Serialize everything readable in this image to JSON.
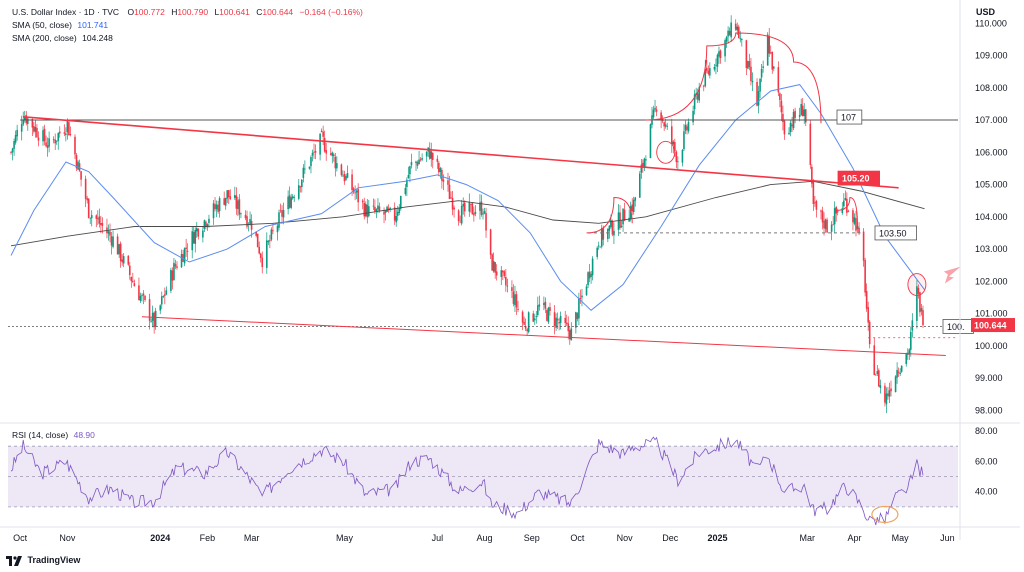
{
  "legend": {
    "symbol": "U.S. Dollar Index · 1D · TVC",
    "open_label": "O",
    "open": "100.772",
    "high_label": "H",
    "high": "100.790",
    "low_label": "L",
    "low": "100.641",
    "close_label": "C",
    "close": "100.644",
    "change": "−0.164 (−0.16%)",
    "sma50_label": "SMA (50, close)",
    "sma50_value": "101.741",
    "sma200_label": "SMA (200, close)",
    "sma200_value": "104.248"
  },
  "rsi_legend": {
    "label": "RSI (14, close)",
    "value": "48.90"
  },
  "footer": {
    "brand": "TradingView"
  },
  "colors": {
    "up": "#089981",
    "down": "#f23645",
    "sma50": "#5b8def",
    "sma200": "#4a4a4a",
    "trend": "#f23645",
    "rsi": "#7e57c2",
    "rsi_band": "#ede7f6"
  },
  "chart_data": [
    {
      "type": "candlestick",
      "title": "",
      "currency": "USD",
      "y_ticks": [
        "98.000",
        "99.000",
        "100.000",
        "101.000",
        "102.000",
        "103.000",
        "104.000",
        "105.000",
        "106.000",
        "107.000",
        "108.000",
        "109.000",
        "110.000"
      ],
      "ylim": [
        97.7,
        110.35
      ],
      "x_ticks": [
        {
          "label": "Oct",
          "date": "2023-10-01"
        },
        {
          "label": "Nov",
          "date": "2023-11-01"
        },
        {
          "label": "2024",
          "date": "2024-01-01",
          "bold": true
        },
        {
          "label": "Feb",
          "date": "2024-02-01"
        },
        {
          "label": "Mar",
          "date": "2024-03-01"
        },
        {
          "label": "May",
          "date": "2024-05-01"
        },
        {
          "label": "Jul",
          "date": "2024-07-01"
        },
        {
          "label": "Aug",
          "date": "2024-08-01"
        },
        {
          "label": "Sep",
          "date": "2024-09-01"
        },
        {
          "label": "Oct",
          "date": "2024-10-01"
        },
        {
          "label": "Nov",
          "date": "2024-11-01"
        },
        {
          "label": "Dec",
          "date": "2024-12-01"
        },
        {
          "label": "2025",
          "date": "2025-01-01",
          "bold": true
        },
        {
          "label": "Mar",
          "date": "2025-03-01"
        },
        {
          "label": "Apr",
          "date": "2025-04-01"
        },
        {
          "label": "May",
          "date": "2025-05-01"
        },
        {
          "label": "Jun",
          "date": "2025-06-01"
        }
      ],
      "anchors": [
        [
          "2023-09-25",
          106.0
        ],
        [
          "2023-10-03",
          107.2
        ],
        [
          "2023-10-20",
          106.2
        ],
        [
          "2023-11-01",
          106.9
        ],
        [
          "2023-11-15",
          104.2
        ],
        [
          "2023-12-01",
          103.3
        ],
        [
          "2023-12-15",
          101.9
        ],
        [
          "2023-12-28",
          100.7
        ],
        [
          "2024-01-10",
          102.4
        ],
        [
          "2024-01-25",
          103.6
        ],
        [
          "2024-02-14",
          104.7
        ],
        [
          "2024-03-01",
          103.8
        ],
        [
          "2024-03-08",
          102.7
        ],
        [
          "2024-03-20",
          104.0
        ],
        [
          "2024-04-16",
          106.4
        ],
        [
          "2024-05-03",
          105.1
        ],
        [
          "2024-05-15",
          104.2
        ],
        [
          "2024-06-03",
          104.0
        ],
        [
          "2024-06-14",
          105.6
        ],
        [
          "2024-06-26",
          106.0
        ],
        [
          "2024-07-15",
          104.1
        ],
        [
          "2024-07-31",
          104.3
        ],
        [
          "2024-08-05",
          102.6
        ],
        [
          "2024-08-20",
          101.5
        ],
        [
          "2024-08-27",
          100.6
        ],
        [
          "2024-09-06",
          101.2
        ],
        [
          "2024-09-27",
          100.4
        ],
        [
          "2024-10-15",
          103.3
        ],
        [
          "2024-10-31",
          104.0
        ],
        [
          "2024-11-07",
          104.4
        ],
        [
          "2024-11-22",
          107.5
        ],
        [
          "2024-12-06",
          105.8
        ],
        [
          "2024-12-20",
          108.0
        ],
        [
          "2025-01-13",
          110.0
        ],
        [
          "2025-01-27",
          107.5
        ],
        [
          "2025-02-03",
          109.5
        ],
        [
          "2025-02-14",
          106.7
        ],
        [
          "2025-02-27",
          107.4
        ],
        [
          "2025-03-05",
          104.3
        ],
        [
          "2025-03-14",
          103.7
        ],
        [
          "2025-03-26",
          104.5
        ],
        [
          "2025-04-02",
          103.8
        ],
        [
          "2025-04-07",
          102.5
        ],
        [
          "2025-04-11",
          99.8
        ],
        [
          "2025-04-21",
          98.3
        ],
        [
          "2025-04-28",
          99.2
        ],
        [
          "2025-05-07",
          99.9
        ],
        [
          "2025-05-12",
          101.7
        ],
        [
          "2025-05-15",
          101.0
        ],
        [
          "2025-05-17",
          100.64
        ]
      ],
      "last_date": "2025-05-17",
      "sma50": [
        [
          "2023-09-25",
          102.8
        ],
        [
          "2023-10-10",
          104.2
        ],
        [
          "2023-10-31",
          105.7
        ],
        [
          "2023-11-15",
          105.4
        ],
        [
          "2023-12-01",
          104.6
        ],
        [
          "2023-12-28",
          103.2
        ],
        [
          "2024-01-20",
          102.6
        ],
        [
          "2024-02-14",
          103.0
        ],
        [
          "2024-03-10",
          103.7
        ],
        [
          "2024-04-16",
          104.1
        ],
        [
          "2024-05-10",
          104.9
        ],
        [
          "2024-06-10",
          105.1
        ],
        [
          "2024-07-01",
          105.3
        ],
        [
          "2024-07-20",
          105.0
        ],
        [
          "2024-08-10",
          104.5
        ],
        [
          "2024-08-31",
          103.5
        ],
        [
          "2024-09-20",
          102.0
        ],
        [
          "2024-10-10",
          101.1
        ],
        [
          "2024-10-31",
          101.9
        ],
        [
          "2024-11-25",
          103.7
        ],
        [
          "2024-12-20",
          105.6
        ],
        [
          "2025-01-13",
          107.0
        ],
        [
          "2025-02-05",
          107.9
        ],
        [
          "2025-02-24",
          108.1
        ],
        [
          "2025-03-10",
          107.2
        ],
        [
          "2025-03-31",
          105.5
        ],
        [
          "2025-04-21",
          103.4
        ],
        [
          "2025-05-17",
          101.74
        ]
      ],
      "sma200": [
        [
          "2023-09-25",
          103.1
        ],
        [
          "2023-11-01",
          103.4
        ],
        [
          "2023-12-15",
          103.7
        ],
        [
          "2024-01-31",
          103.7
        ],
        [
          "2024-03-15",
          103.8
        ],
        [
          "2024-04-30",
          104.0
        ],
        [
          "2024-06-10",
          104.3
        ],
        [
          "2024-07-15",
          104.5
        ],
        [
          "2024-08-15",
          104.3
        ],
        [
          "2024-09-15",
          103.9
        ],
        [
          "2024-10-15",
          103.8
        ],
        [
          "2024-11-15",
          104.0
        ],
        [
          "2024-12-31",
          104.6
        ],
        [
          "2025-02-05",
          105.0
        ],
        [
          "2025-03-05",
          105.1
        ],
        [
          "2025-04-05",
          104.8
        ],
        [
          "2025-05-17",
          104.25
        ]
      ],
      "levels": [
        {
          "value": 107.0,
          "label": "107",
          "from": "2023-10-01"
        },
        {
          "value": 103.5,
          "label": "103.50",
          "from": "2024-10-08"
        },
        {
          "value": 105.2,
          "label": "105.20"
        },
        {
          "value": 100.644,
          "label": "100.644"
        },
        {
          "value": 100.6,
          "label": "100."
        }
      ],
      "trendlines": [
        {
          "from": [
            "2023-10-03",
            107.1
          ],
          "to": [
            "2025-04-30",
            104.9
          ]
        },
        {
          "from": [
            "2023-12-20",
            100.9
          ],
          "to": [
            "2025-05-31",
            99.7
          ]
        }
      ],
      "arcs": [
        {
          "points": [
            [
              "2024-10-07",
              103.5
            ],
            [
              "2024-10-25",
              104.6
            ],
            [
              "2024-11-06",
              103.8
            ]
          ]
        },
        {
          "points": [
            [
              "2024-11-15",
              107.0
            ],
            [
              "2024-12-25",
              109.3
            ],
            [
              "2025-01-13",
              109.7
            ],
            [
              "2025-02-20",
              108.8
            ],
            [
              "2025-03-10",
              106.9
            ]
          ]
        },
        {
          "points": [
            [
              "2025-03-20",
              104.2
            ],
            [
              "2025-03-29",
              104.6
            ],
            [
              "2025-04-03",
              103.7
            ]
          ]
        }
      ],
      "circles": [
        {
          "date": "2024-11-28",
          "value": 106.0
        },
        {
          "date": "2025-05-12",
          "value": 101.9
        }
      ]
    },
    {
      "type": "line",
      "series": [
        {
          "name": "RSI (14, close)"
        }
      ],
      "y_ticks": [
        "40.00",
        "60.00",
        "80.00"
      ],
      "ylim": [
        20,
        82
      ],
      "band": [
        30,
        70
      ],
      "mid": 50,
      "anchors": [
        [
          "2023-09-25",
          55
        ],
        [
          "2023-10-03",
          70
        ],
        [
          "2023-10-15",
          52
        ],
        [
          "2023-10-31",
          60
        ],
        [
          "2023-11-15",
          36
        ],
        [
          "2023-11-30",
          42
        ],
        [
          "2023-12-14",
          33
        ],
        [
          "2023-12-28",
          34
        ],
        [
          "2024-01-12",
          56
        ],
        [
          "2024-01-30",
          52
        ],
        [
          "2024-02-14",
          66
        ],
        [
          "2024-03-01",
          47
        ],
        [
          "2024-03-08",
          37
        ],
        [
          "2024-03-25",
          55
        ],
        [
          "2024-04-16",
          68
        ],
        [
          "2024-04-30",
          60
        ],
        [
          "2024-05-15",
          38
        ],
        [
          "2024-06-03",
          42
        ],
        [
          "2024-06-14",
          60
        ],
        [
          "2024-06-26",
          62
        ],
        [
          "2024-07-15",
          40
        ],
        [
          "2024-07-31",
          47
        ],
        [
          "2024-08-05",
          32
        ],
        [
          "2024-08-23",
          26
        ],
        [
          "2024-09-06",
          40
        ],
        [
          "2024-09-27",
          32
        ],
        [
          "2024-10-15",
          72
        ],
        [
          "2024-10-31",
          65
        ],
        [
          "2024-11-07",
          70
        ],
        [
          "2024-11-22",
          72
        ],
        [
          "2024-12-06",
          48
        ],
        [
          "2024-12-20",
          66
        ],
        [
          "2025-01-13",
          74
        ],
        [
          "2025-01-27",
          54
        ],
        [
          "2025-02-03",
          64
        ],
        [
          "2025-02-14",
          40
        ],
        [
          "2025-02-27",
          44
        ],
        [
          "2025-03-05",
          28
        ],
        [
          "2025-03-14",
          29
        ],
        [
          "2025-03-26",
          44
        ],
        [
          "2025-04-02",
          36
        ],
        [
          "2025-04-11",
          21
        ],
        [
          "2025-04-21",
          22
        ],
        [
          "2025-04-28",
          36
        ],
        [
          "2025-05-07",
          44
        ],
        [
          "2025-05-12",
          58
        ],
        [
          "2025-05-17",
          48.9
        ]
      ],
      "last_date": "2025-05-17",
      "ellipse": {
        "date": "2025-04-21",
        "value": 25
      }
    }
  ]
}
